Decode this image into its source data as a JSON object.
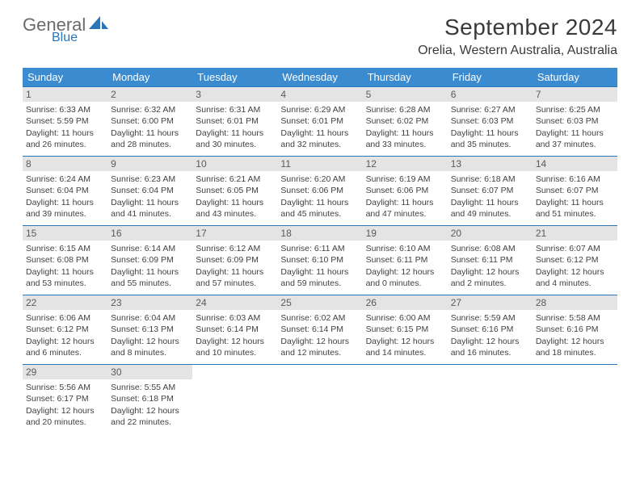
{
  "brand": {
    "general": "General",
    "blue": "Blue"
  },
  "title": "September 2024",
  "location": "Orelia, Western Australia, Australia",
  "colors": {
    "header_bg": "#3b8bd0",
    "header_text": "#ffffff",
    "accent_blue": "#2976bb",
    "daynum_bg": "#e4e4e4",
    "body_text": "#414141",
    "logo_gray": "#6a6a6a"
  },
  "weekdays": [
    "Sunday",
    "Monday",
    "Tuesday",
    "Wednesday",
    "Thursday",
    "Friday",
    "Saturday"
  ],
  "weeks": [
    [
      {
        "n": "1",
        "sr": "Sunrise: 6:33 AM",
        "ss": "Sunset: 5:59 PM",
        "d1": "Daylight: 11 hours",
        "d2": "and 26 minutes."
      },
      {
        "n": "2",
        "sr": "Sunrise: 6:32 AM",
        "ss": "Sunset: 6:00 PM",
        "d1": "Daylight: 11 hours",
        "d2": "and 28 minutes."
      },
      {
        "n": "3",
        "sr": "Sunrise: 6:31 AM",
        "ss": "Sunset: 6:01 PM",
        "d1": "Daylight: 11 hours",
        "d2": "and 30 minutes."
      },
      {
        "n": "4",
        "sr": "Sunrise: 6:29 AM",
        "ss": "Sunset: 6:01 PM",
        "d1": "Daylight: 11 hours",
        "d2": "and 32 minutes."
      },
      {
        "n": "5",
        "sr": "Sunrise: 6:28 AM",
        "ss": "Sunset: 6:02 PM",
        "d1": "Daylight: 11 hours",
        "d2": "and 33 minutes."
      },
      {
        "n": "6",
        "sr": "Sunrise: 6:27 AM",
        "ss": "Sunset: 6:03 PM",
        "d1": "Daylight: 11 hours",
        "d2": "and 35 minutes."
      },
      {
        "n": "7",
        "sr": "Sunrise: 6:25 AM",
        "ss": "Sunset: 6:03 PM",
        "d1": "Daylight: 11 hours",
        "d2": "and 37 minutes."
      }
    ],
    [
      {
        "n": "8",
        "sr": "Sunrise: 6:24 AM",
        "ss": "Sunset: 6:04 PM",
        "d1": "Daylight: 11 hours",
        "d2": "and 39 minutes."
      },
      {
        "n": "9",
        "sr": "Sunrise: 6:23 AM",
        "ss": "Sunset: 6:04 PM",
        "d1": "Daylight: 11 hours",
        "d2": "and 41 minutes."
      },
      {
        "n": "10",
        "sr": "Sunrise: 6:21 AM",
        "ss": "Sunset: 6:05 PM",
        "d1": "Daylight: 11 hours",
        "d2": "and 43 minutes."
      },
      {
        "n": "11",
        "sr": "Sunrise: 6:20 AM",
        "ss": "Sunset: 6:06 PM",
        "d1": "Daylight: 11 hours",
        "d2": "and 45 minutes."
      },
      {
        "n": "12",
        "sr": "Sunrise: 6:19 AM",
        "ss": "Sunset: 6:06 PM",
        "d1": "Daylight: 11 hours",
        "d2": "and 47 minutes."
      },
      {
        "n": "13",
        "sr": "Sunrise: 6:18 AM",
        "ss": "Sunset: 6:07 PM",
        "d1": "Daylight: 11 hours",
        "d2": "and 49 minutes."
      },
      {
        "n": "14",
        "sr": "Sunrise: 6:16 AM",
        "ss": "Sunset: 6:07 PM",
        "d1": "Daylight: 11 hours",
        "d2": "and 51 minutes."
      }
    ],
    [
      {
        "n": "15",
        "sr": "Sunrise: 6:15 AM",
        "ss": "Sunset: 6:08 PM",
        "d1": "Daylight: 11 hours",
        "d2": "and 53 minutes."
      },
      {
        "n": "16",
        "sr": "Sunrise: 6:14 AM",
        "ss": "Sunset: 6:09 PM",
        "d1": "Daylight: 11 hours",
        "d2": "and 55 minutes."
      },
      {
        "n": "17",
        "sr": "Sunrise: 6:12 AM",
        "ss": "Sunset: 6:09 PM",
        "d1": "Daylight: 11 hours",
        "d2": "and 57 minutes."
      },
      {
        "n": "18",
        "sr": "Sunrise: 6:11 AM",
        "ss": "Sunset: 6:10 PM",
        "d1": "Daylight: 11 hours",
        "d2": "and 59 minutes."
      },
      {
        "n": "19",
        "sr": "Sunrise: 6:10 AM",
        "ss": "Sunset: 6:11 PM",
        "d1": "Daylight: 12 hours",
        "d2": "and 0 minutes."
      },
      {
        "n": "20",
        "sr": "Sunrise: 6:08 AM",
        "ss": "Sunset: 6:11 PM",
        "d1": "Daylight: 12 hours",
        "d2": "and 2 minutes."
      },
      {
        "n": "21",
        "sr": "Sunrise: 6:07 AM",
        "ss": "Sunset: 6:12 PM",
        "d1": "Daylight: 12 hours",
        "d2": "and 4 minutes."
      }
    ],
    [
      {
        "n": "22",
        "sr": "Sunrise: 6:06 AM",
        "ss": "Sunset: 6:12 PM",
        "d1": "Daylight: 12 hours",
        "d2": "and 6 minutes."
      },
      {
        "n": "23",
        "sr": "Sunrise: 6:04 AM",
        "ss": "Sunset: 6:13 PM",
        "d1": "Daylight: 12 hours",
        "d2": "and 8 minutes."
      },
      {
        "n": "24",
        "sr": "Sunrise: 6:03 AM",
        "ss": "Sunset: 6:14 PM",
        "d1": "Daylight: 12 hours",
        "d2": "and 10 minutes."
      },
      {
        "n": "25",
        "sr": "Sunrise: 6:02 AM",
        "ss": "Sunset: 6:14 PM",
        "d1": "Daylight: 12 hours",
        "d2": "and 12 minutes."
      },
      {
        "n": "26",
        "sr": "Sunrise: 6:00 AM",
        "ss": "Sunset: 6:15 PM",
        "d1": "Daylight: 12 hours",
        "d2": "and 14 minutes."
      },
      {
        "n": "27",
        "sr": "Sunrise: 5:59 AM",
        "ss": "Sunset: 6:16 PM",
        "d1": "Daylight: 12 hours",
        "d2": "and 16 minutes."
      },
      {
        "n": "28",
        "sr": "Sunrise: 5:58 AM",
        "ss": "Sunset: 6:16 PM",
        "d1": "Daylight: 12 hours",
        "d2": "and 18 minutes."
      }
    ],
    [
      {
        "n": "29",
        "sr": "Sunrise: 5:56 AM",
        "ss": "Sunset: 6:17 PM",
        "d1": "Daylight: 12 hours",
        "d2": "and 20 minutes."
      },
      {
        "n": "30",
        "sr": "Sunrise: 5:55 AM",
        "ss": "Sunset: 6:18 PM",
        "d1": "Daylight: 12 hours",
        "d2": "and 22 minutes."
      },
      null,
      null,
      null,
      null,
      null
    ]
  ]
}
